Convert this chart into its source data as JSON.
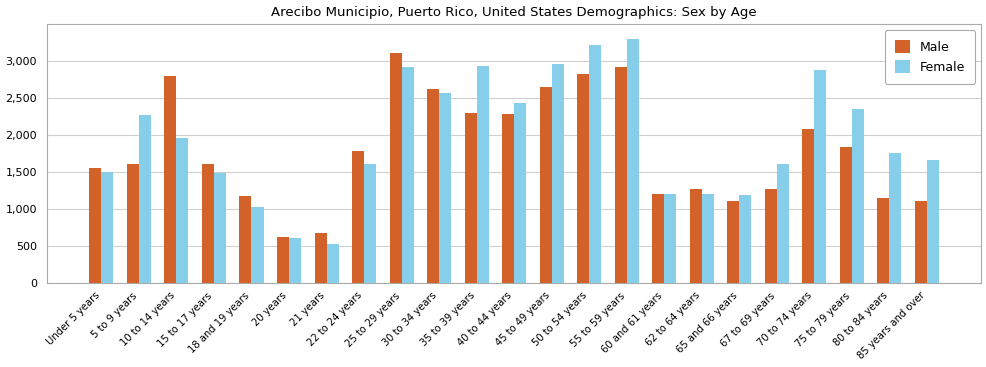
{
  "title": "Arecibo Municipio, Puerto Rico, United States Demographics: Sex by Age",
  "categories": [
    "Under 5 years",
    "5 to 9 years",
    "10 to 14 years",
    "15 to 17 years",
    "18 and 19 years",
    "20 years",
    "21 years",
    "22 to 24 years",
    "25 to 29 years",
    "30 to 34 years",
    "35 to 39 years",
    "40 to 44 years",
    "45 to 49 years",
    "50 to 54 years",
    "55 to 59 years",
    "60 and 61 years",
    "62 to 64 years",
    "65 and 66 years",
    "67 to 69 years",
    "70 to 74 years",
    "75 to 79 years",
    "80 to 84 years",
    "85 years and over"
  ],
  "male": [
    1550,
    1610,
    2800,
    1600,
    1175,
    615,
    670,
    1780,
    3100,
    2625,
    2300,
    2280,
    2650,
    2820,
    2920,
    1200,
    1265,
    1110,
    1270,
    2075,
    1840,
    1140,
    1105
  ],
  "female": [
    1500,
    2270,
    1960,
    1490,
    1025,
    610,
    530,
    1600,
    2920,
    2570,
    2930,
    2435,
    2960,
    3210,
    3300,
    1195,
    1205,
    1185,
    1600,
    2870,
    2355,
    1755,
    1660
  ],
  "male_color": "#d2622a",
  "female_color": "#87ceeb",
  "bar_width": 0.32,
  "ylim": [
    0,
    3500
  ],
  "yticks": [
    0,
    500,
    1000,
    1500,
    2000,
    2500,
    3000
  ],
  "legend_labels": [
    "Male",
    "Female"
  ],
  "bg_color": "#ffffff",
  "plot_bg_color": "#ffffff",
  "grid_color": "#d0d0d0",
  "spine_color": "#aaaaaa"
}
